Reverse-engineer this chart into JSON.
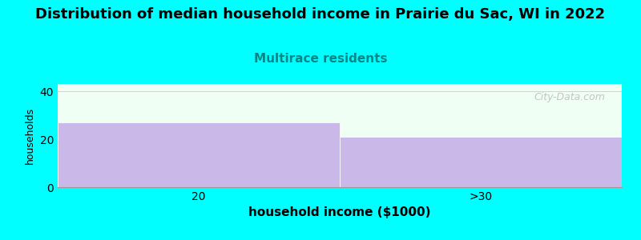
{
  "title": "Distribution of median household income in Prairie du Sac, WI in 2022",
  "subtitle": "Multirace residents",
  "categories": [
    "20",
    ">30"
  ],
  "values": [
    27,
    21
  ],
  "bar_color": "#c9b8e8",
  "bar_edge_color": "#c9b8e8",
  "background_color": "#00FFFF",
  "plot_bg_color": "#f0fff4",
  "xlabel": "household income ($1000)",
  "ylabel": "households",
  "ylim": [
    0,
    43
  ],
  "yticks": [
    0,
    20,
    40
  ],
  "title_fontsize": 13,
  "subtitle_fontsize": 11,
  "subtitle_color": "#008888",
  "xlabel_fontsize": 11,
  "ylabel_fontsize": 9,
  "watermark": "City-Data.com",
  "watermark_color": "#bbbbbb"
}
